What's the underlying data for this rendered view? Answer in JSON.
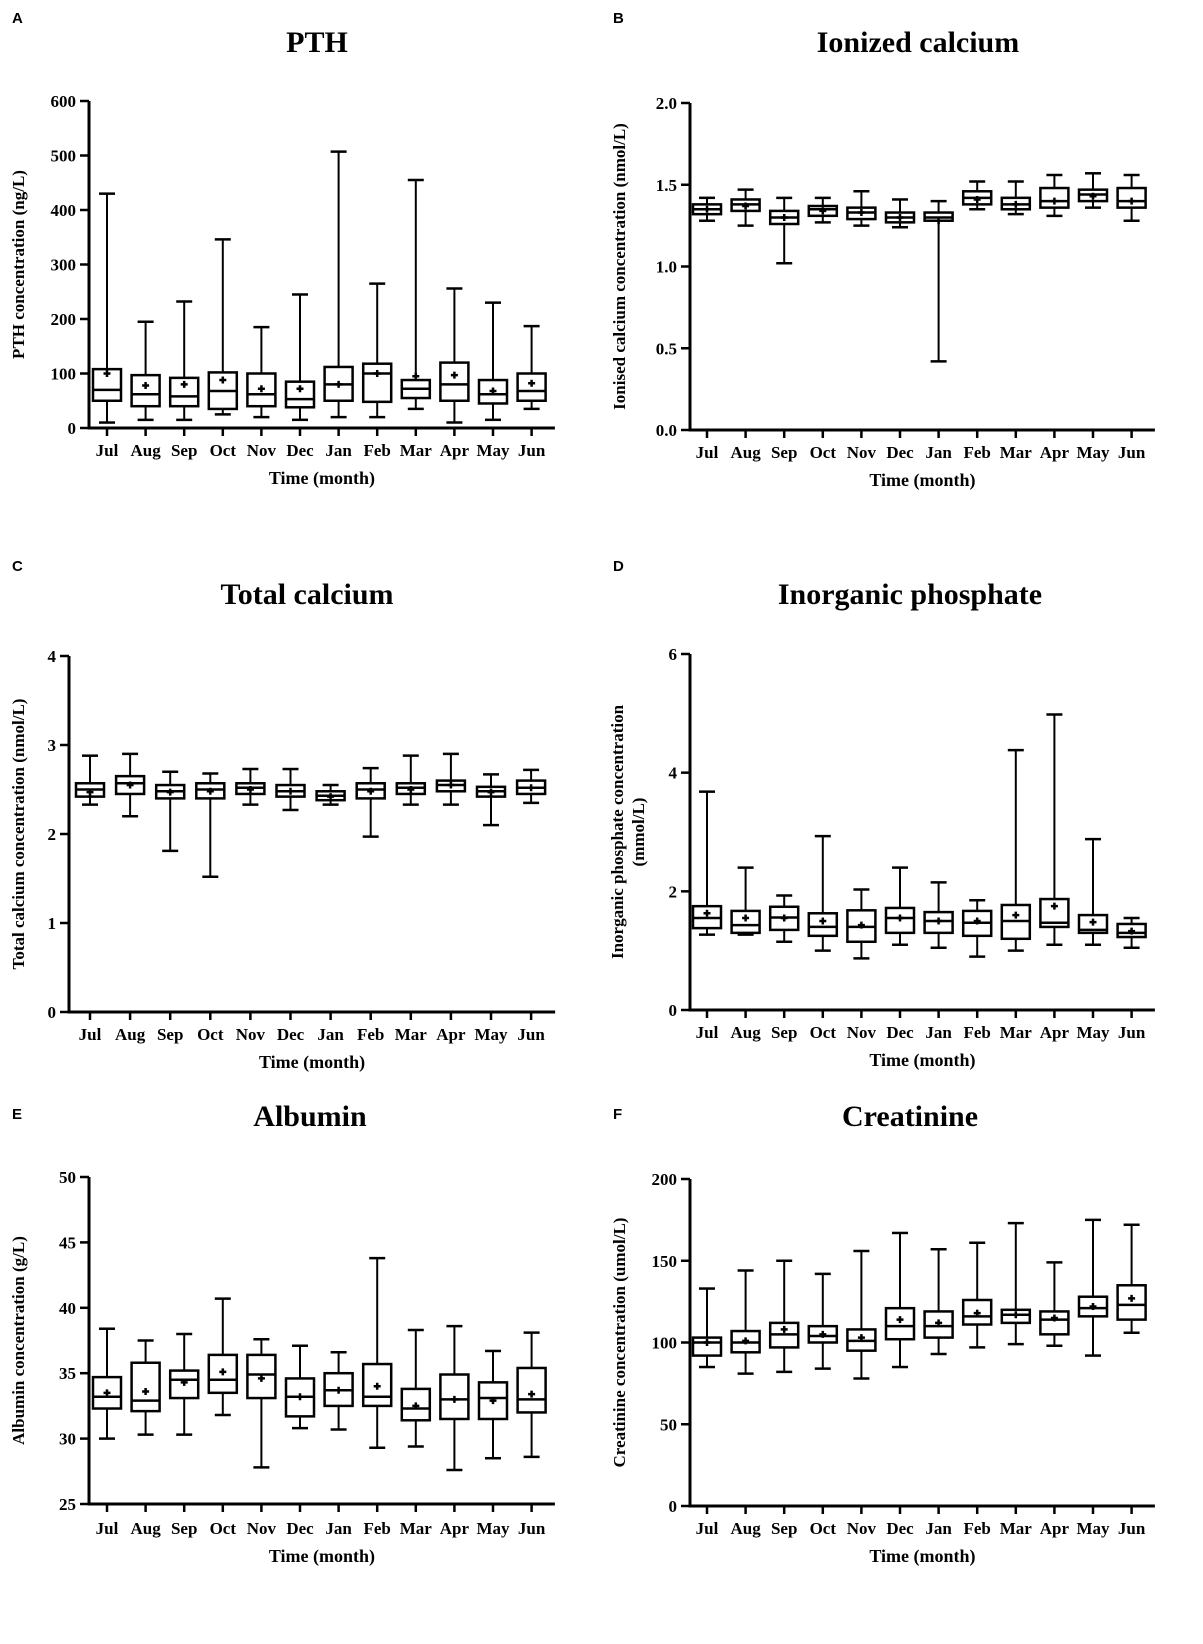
{
  "months": [
    "Jul",
    "Aug",
    "Sep",
    "Oct",
    "Nov",
    "Dec",
    "Jan",
    "Feb",
    "Mar",
    "Apr",
    "May",
    "Jun"
  ],
  "chart_data": [
    {
      "panel": "A",
      "type": "box",
      "title": "PTH",
      "xlabel": "Time (month)",
      "ylabel": "PTH concentration (ng/L)",
      "ylim": [
        0,
        600
      ],
      "yticks": [
        "0",
        "100",
        "200",
        "300",
        "400",
        "500",
        "600"
      ],
      "boxes": [
        {
          "min": 10,
          "q1": 50,
          "median": 70,
          "q3": 108,
          "max": 430,
          "mean": 100
        },
        {
          "min": 15,
          "q1": 40,
          "median": 62,
          "q3": 97,
          "max": 195,
          "mean": 78
        },
        {
          "min": 15,
          "q1": 40,
          "median": 58,
          "q3": 92,
          "max": 232,
          "mean": 80
        },
        {
          "min": 25,
          "q1": 35,
          "median": 68,
          "q3": 102,
          "max": 346,
          "mean": 88
        },
        {
          "min": 20,
          "q1": 40,
          "median": 62,
          "q3": 100,
          "max": 185,
          "mean": 72
        },
        {
          "min": 15,
          "q1": 38,
          "median": 53,
          "q3": 85,
          "max": 245,
          "mean": 72
        },
        {
          "min": 20,
          "q1": 50,
          "median": 80,
          "q3": 112,
          "max": 507,
          "mean": 80
        },
        {
          "min": 20,
          "q1": 48,
          "median": 100,
          "q3": 118,
          "max": 265,
          "mean": 100
        },
        {
          "min": 35,
          "q1": 55,
          "median": 72,
          "q3": 88,
          "max": 455,
          "mean": 95
        },
        {
          "min": 10,
          "q1": 50,
          "median": 80,
          "q3": 120,
          "max": 256,
          "mean": 97
        },
        {
          "min": 15,
          "q1": 45,
          "median": 62,
          "q3": 88,
          "max": 230,
          "mean": 68
        },
        {
          "min": 35,
          "q1": 50,
          "median": 68,
          "q3": 100,
          "max": 187,
          "mean": 82
        }
      ]
    },
    {
      "panel": "B",
      "type": "box",
      "title": "Ionized calcium",
      "xlabel": "Time (month)",
      "ylabel": "Ionised calcium concentration (nmol/L)",
      "ylim": [
        0,
        2
      ],
      "yticks": [
        "0.0",
        "0.5",
        "1.0",
        "1.5",
        "2.0"
      ],
      "boxes": [
        {
          "min": 1.28,
          "q1": 1.32,
          "median": 1.35,
          "q3": 1.38,
          "max": 1.42,
          "mean": 1.35
        },
        {
          "min": 1.25,
          "q1": 1.34,
          "median": 1.38,
          "q3": 1.41,
          "max": 1.47,
          "mean": 1.37
        },
        {
          "min": 1.02,
          "q1": 1.26,
          "median": 1.3,
          "q3": 1.34,
          "max": 1.42,
          "mean": 1.3
        },
        {
          "min": 1.27,
          "q1": 1.31,
          "median": 1.35,
          "q3": 1.37,
          "max": 1.42,
          "mean": 1.34
        },
        {
          "min": 1.25,
          "q1": 1.29,
          "median": 1.33,
          "q3": 1.36,
          "max": 1.46,
          "mean": 1.33
        },
        {
          "min": 1.24,
          "q1": 1.27,
          "median": 1.3,
          "q3": 1.33,
          "max": 1.41,
          "mean": 1.3
        },
        {
          "min": 0.42,
          "q1": 1.28,
          "median": 1.3,
          "q3": 1.33,
          "max": 1.4,
          "mean": 1.28
        },
        {
          "min": 1.35,
          "q1": 1.38,
          "median": 1.42,
          "q3": 1.46,
          "max": 1.52,
          "mean": 1.41
        },
        {
          "min": 1.32,
          "q1": 1.35,
          "median": 1.38,
          "q3": 1.42,
          "max": 1.52,
          "mean": 1.38
        },
        {
          "min": 1.31,
          "q1": 1.36,
          "median": 1.4,
          "q3": 1.48,
          "max": 1.56,
          "mean": 1.4
        },
        {
          "min": 1.36,
          "q1": 1.4,
          "median": 1.44,
          "q3": 1.47,
          "max": 1.57,
          "mean": 1.43
        },
        {
          "min": 1.28,
          "q1": 1.36,
          "median": 1.4,
          "q3": 1.48,
          "max": 1.56,
          "mean": 1.4
        }
      ]
    },
    {
      "panel": "C",
      "type": "box",
      "title": "Total calcium",
      "xlabel": "Time (month)",
      "ylabel": "Total calcium concentration (nmol/L)",
      "ylim": [
        0,
        4
      ],
      "yticks": [
        "0",
        "1",
        "2",
        "3",
        "4"
      ],
      "boxes": [
        {
          "min": 2.33,
          "q1": 2.42,
          "median": 2.5,
          "q3": 2.57,
          "max": 2.88,
          "mean": 2.47
        },
        {
          "min": 2.2,
          "q1": 2.45,
          "median": 2.57,
          "q3": 2.65,
          "max": 2.9,
          "mean": 2.55
        },
        {
          "min": 1.81,
          "q1": 2.4,
          "median": 2.48,
          "q3": 2.55,
          "max": 2.7,
          "mean": 2.47
        },
        {
          "min": 1.52,
          "q1": 2.4,
          "median": 2.5,
          "q3": 2.57,
          "max": 2.68,
          "mean": 2.48
        },
        {
          "min": 2.33,
          "q1": 2.45,
          "median": 2.52,
          "q3": 2.57,
          "max": 2.73,
          "mean": 2.5
        },
        {
          "min": 2.27,
          "q1": 2.42,
          "median": 2.48,
          "q3": 2.55,
          "max": 2.73,
          "mean": 2.48
        },
        {
          "min": 2.33,
          "q1": 2.38,
          "median": 2.43,
          "q3": 2.48,
          "max": 2.55,
          "mean": 2.42
        },
        {
          "min": 1.97,
          "q1": 2.4,
          "median": 2.5,
          "q3": 2.57,
          "max": 2.74,
          "mean": 2.48
        },
        {
          "min": 2.33,
          "q1": 2.45,
          "median": 2.52,
          "q3": 2.57,
          "max": 2.88,
          "mean": 2.5
        },
        {
          "min": 2.33,
          "q1": 2.48,
          "median": 2.55,
          "q3": 2.6,
          "max": 2.9,
          "mean": 2.55
        },
        {
          "min": 2.1,
          "q1": 2.42,
          "median": 2.48,
          "q3": 2.53,
          "max": 2.67,
          "mean": 2.47
        },
        {
          "min": 2.35,
          "q1": 2.45,
          "median": 2.52,
          "q3": 2.6,
          "max": 2.72,
          "mean": 2.52
        }
      ]
    },
    {
      "panel": "D",
      "type": "box",
      "title": "Inorganic phosphate",
      "xlabel": "Time (month)",
      "ylabel_lines": [
        "Inorganic phosphate concentration",
        "(mmol/L)"
      ],
      "ylim": [
        0,
        6
      ],
      "yticks": [
        "0",
        "2",
        "4",
        "6"
      ],
      "ytick_values": [
        0,
        2,
        4,
        6
      ],
      "boxes": [
        {
          "min": 1.27,
          "q1": 1.38,
          "median": 1.55,
          "q3": 1.75,
          "max": 3.68,
          "mean": 1.63
        },
        {
          "min": 1.27,
          "q1": 1.3,
          "median": 1.43,
          "q3": 1.67,
          "max": 2.4,
          "mean": 1.55
        },
        {
          "min": 1.15,
          "q1": 1.35,
          "median": 1.56,
          "q3": 1.74,
          "max": 1.93,
          "mean": 1.55
        },
        {
          "min": 1.0,
          "q1": 1.25,
          "median": 1.4,
          "q3": 1.63,
          "max": 2.93,
          "mean": 1.5
        },
        {
          "min": 0.87,
          "q1": 1.15,
          "median": 1.4,
          "q3": 1.68,
          "max": 2.03,
          "mean": 1.43
        },
        {
          "min": 1.1,
          "q1": 1.3,
          "median": 1.55,
          "q3": 1.72,
          "max": 2.4,
          "mean": 1.55
        },
        {
          "min": 1.05,
          "q1": 1.3,
          "median": 1.5,
          "q3": 1.65,
          "max": 2.15,
          "mean": 1.5
        },
        {
          "min": 0.9,
          "q1": 1.25,
          "median": 1.47,
          "q3": 1.67,
          "max": 1.85,
          "mean": 1.5
        },
        {
          "min": 1.0,
          "q1": 1.2,
          "median": 1.5,
          "q3": 1.77,
          "max": 4.38,
          "mean": 1.6
        },
        {
          "min": 1.1,
          "q1": 1.4,
          "median": 1.47,
          "q3": 1.87,
          "max": 4.98,
          "mean": 1.75
        },
        {
          "min": 1.1,
          "q1": 1.3,
          "median": 1.35,
          "q3": 1.6,
          "max": 2.88,
          "mean": 1.48
        },
        {
          "min": 1.05,
          "q1": 1.23,
          "median": 1.3,
          "q3": 1.45,
          "max": 1.55,
          "mean": 1.33
        }
      ]
    },
    {
      "panel": "E",
      "type": "box",
      "title": "Albumin",
      "xlabel": "Time (month)",
      "ylabel": "Albumin concentration (g/L)",
      "ylim": [
        25,
        50
      ],
      "yticks": [
        "25",
        "30",
        "35",
        "40",
        "45",
        "50"
      ],
      "boxes": [
        {
          "min": 30.0,
          "q1": 32.3,
          "median": 33.2,
          "q3": 34.7,
          "max": 38.4,
          "mean": 33.5
        },
        {
          "min": 30.3,
          "q1": 32.1,
          "median": 32.9,
          "q3": 35.8,
          "max": 37.5,
          "mean": 33.6
        },
        {
          "min": 30.3,
          "q1": 33.1,
          "median": 34.5,
          "q3": 35.2,
          "max": 38.0,
          "mean": 34.3
        },
        {
          "min": 31.8,
          "q1": 33.5,
          "median": 34.5,
          "q3": 36.4,
          "max": 40.7,
          "mean": 35.1
        },
        {
          "min": 27.8,
          "q1": 33.1,
          "median": 34.9,
          "q3": 36.4,
          "max": 37.6,
          "mean": 34.6
        },
        {
          "min": 30.8,
          "q1": 31.7,
          "median": 33.2,
          "q3": 34.6,
          "max": 37.1,
          "mean": 33.2
        },
        {
          "min": 30.7,
          "q1": 32.5,
          "median": 33.7,
          "q3": 35.0,
          "max": 36.6,
          "mean": 33.7
        },
        {
          "min": 29.3,
          "q1": 32.5,
          "median": 33.2,
          "q3": 35.7,
          "max": 43.8,
          "mean": 34.0
        },
        {
          "min": 29.4,
          "q1": 31.4,
          "median": 32.3,
          "q3": 33.8,
          "max": 38.3,
          "mean": 32.5
        },
        {
          "min": 27.6,
          "q1": 31.5,
          "median": 33.0,
          "q3": 34.9,
          "max": 38.6,
          "mean": 33.0
        },
        {
          "min": 28.5,
          "q1": 31.5,
          "median": 33.1,
          "q3": 34.3,
          "max": 36.7,
          "mean": 32.9
        },
        {
          "min": 28.6,
          "q1": 32.0,
          "median": 33.0,
          "q3": 35.4,
          "max": 38.1,
          "mean": 33.4
        }
      ]
    },
    {
      "panel": "F",
      "type": "box",
      "title": "Creatinine",
      "xlabel": "Time (month)",
      "ylabel": "Creatinine concentration (umol/L)",
      "ylim": [
        0,
        200
      ],
      "yticks": [
        "0",
        "50",
        "100",
        "150",
        "200"
      ],
      "boxes": [
        {
          "min": 85,
          "q1": 92,
          "median": 100,
          "q3": 103,
          "max": 133,
          "mean": 100
        },
        {
          "min": 81,
          "q1": 94,
          "median": 100,
          "q3": 107,
          "max": 144,
          "mean": 101
        },
        {
          "min": 82,
          "q1": 97,
          "median": 105,
          "q3": 112,
          "max": 150,
          "mean": 108
        },
        {
          "min": 84,
          "q1": 100,
          "median": 104,
          "q3": 110,
          "max": 142,
          "mean": 105
        },
        {
          "min": 78,
          "q1": 95,
          "median": 101,
          "q3": 108,
          "max": 156,
          "mean": 103
        },
        {
          "min": 85,
          "q1": 102,
          "median": 110,
          "q3": 121,
          "max": 167,
          "mean": 114
        },
        {
          "min": 93,
          "q1": 103,
          "median": 110,
          "q3": 119,
          "max": 157,
          "mean": 112
        },
        {
          "min": 97,
          "q1": 111,
          "median": 116,
          "q3": 126,
          "max": 161,
          "mean": 118
        },
        {
          "min": 99,
          "q1": 112,
          "median": 117,
          "q3": 120,
          "max": 173,
          "mean": 117
        },
        {
          "min": 98,
          "q1": 105,
          "median": 114,
          "q3": 119,
          "max": 149,
          "mean": 115
        },
        {
          "min": 92,
          "q1": 116,
          "median": 121,
          "q3": 128,
          "max": 175,
          "mean": 122
        },
        {
          "min": 106,
          "q1": 114,
          "median": 123,
          "q3": 135,
          "max": 172,
          "mean": 127
        }
      ]
    }
  ]
}
